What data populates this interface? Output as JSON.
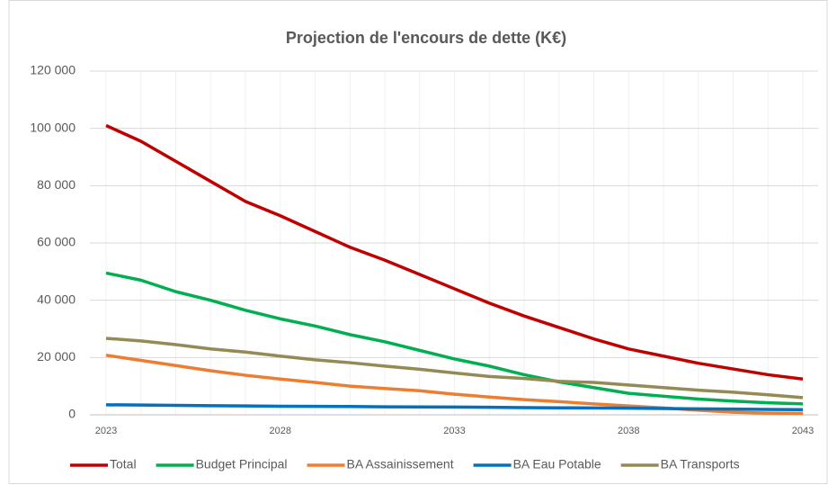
{
  "chart_data": {
    "type": "line",
    "title": "Projection de l'encours de dette (K€)",
    "x": [
      2023,
      2024,
      2025,
      2026,
      2027,
      2028,
      2029,
      2030,
      2031,
      2032,
      2033,
      2034,
      2035,
      2036,
      2037,
      2038,
      2039,
      2040,
      2041,
      2042,
      2043
    ],
    "xlim": [
      2023,
      2043
    ],
    "xticks": [
      2023,
      2028,
      2033,
      2038,
      2043
    ],
    "ylim": [
      0,
      120000
    ],
    "yticks": [
      0,
      {
        "value": 20000,
        "label": "20 000"
      },
      {
        "value": 40000,
        "label": "40 000"
      },
      {
        "value": 60000,
        "label": "60 000"
      },
      {
        "value": 80000,
        "label": "80 000"
      },
      {
        "value": 100000,
        "label": "100 000"
      },
      {
        "value": 120000,
        "label": "120 000"
      }
    ],
    "grid": true,
    "legend": "bottom",
    "series": [
      {
        "name": "Total",
        "color": "#c00000",
        "values": [
          101000,
          95500,
          88500,
          81500,
          74500,
          69500,
          64000,
          58500,
          54000,
          49000,
          44000,
          39000,
          34500,
          30500,
          26500,
          23000,
          20500,
          18000,
          16000,
          14000,
          12500
        ]
      },
      {
        "name": "Budget Principal",
        "color": "#00b050",
        "values": [
          49500,
          47000,
          43000,
          40000,
          36500,
          33500,
          31000,
          28000,
          25500,
          22500,
          19500,
          17000,
          14000,
          11500,
          9500,
          7500,
          6500,
          5500,
          4800,
          4200,
          3800
        ]
      },
      {
        "name": "BA Assainissement",
        "color": "#ed7d31",
        "values": [
          20800,
          19000,
          17200,
          15400,
          13800,
          12500,
          11300,
          10000,
          9200,
          8400,
          7200,
          6200,
          5300,
          4600,
          3800,
          3100,
          2400,
          1600,
          900,
          600,
          500
        ]
      },
      {
        "name": "BA Eau Potable",
        "color": "#0070c0",
        "values": [
          3500,
          3400,
          3300,
          3200,
          3100,
          3000,
          2950,
          2900,
          2800,
          2750,
          2700,
          2650,
          2500,
          2450,
          2400,
          2300,
          2200,
          2100,
          2000,
          1900,
          1800
        ]
      },
      {
        "name": "BA Transports",
        "color": "#948a54",
        "values": [
          26700,
          25800,
          24500,
          23000,
          21900,
          20500,
          19200,
          18200,
          17000,
          15900,
          14600,
          13400,
          12700,
          11700,
          11300,
          10400,
          9500,
          8600,
          7900,
          7000,
          6000
        ]
      }
    ]
  }
}
